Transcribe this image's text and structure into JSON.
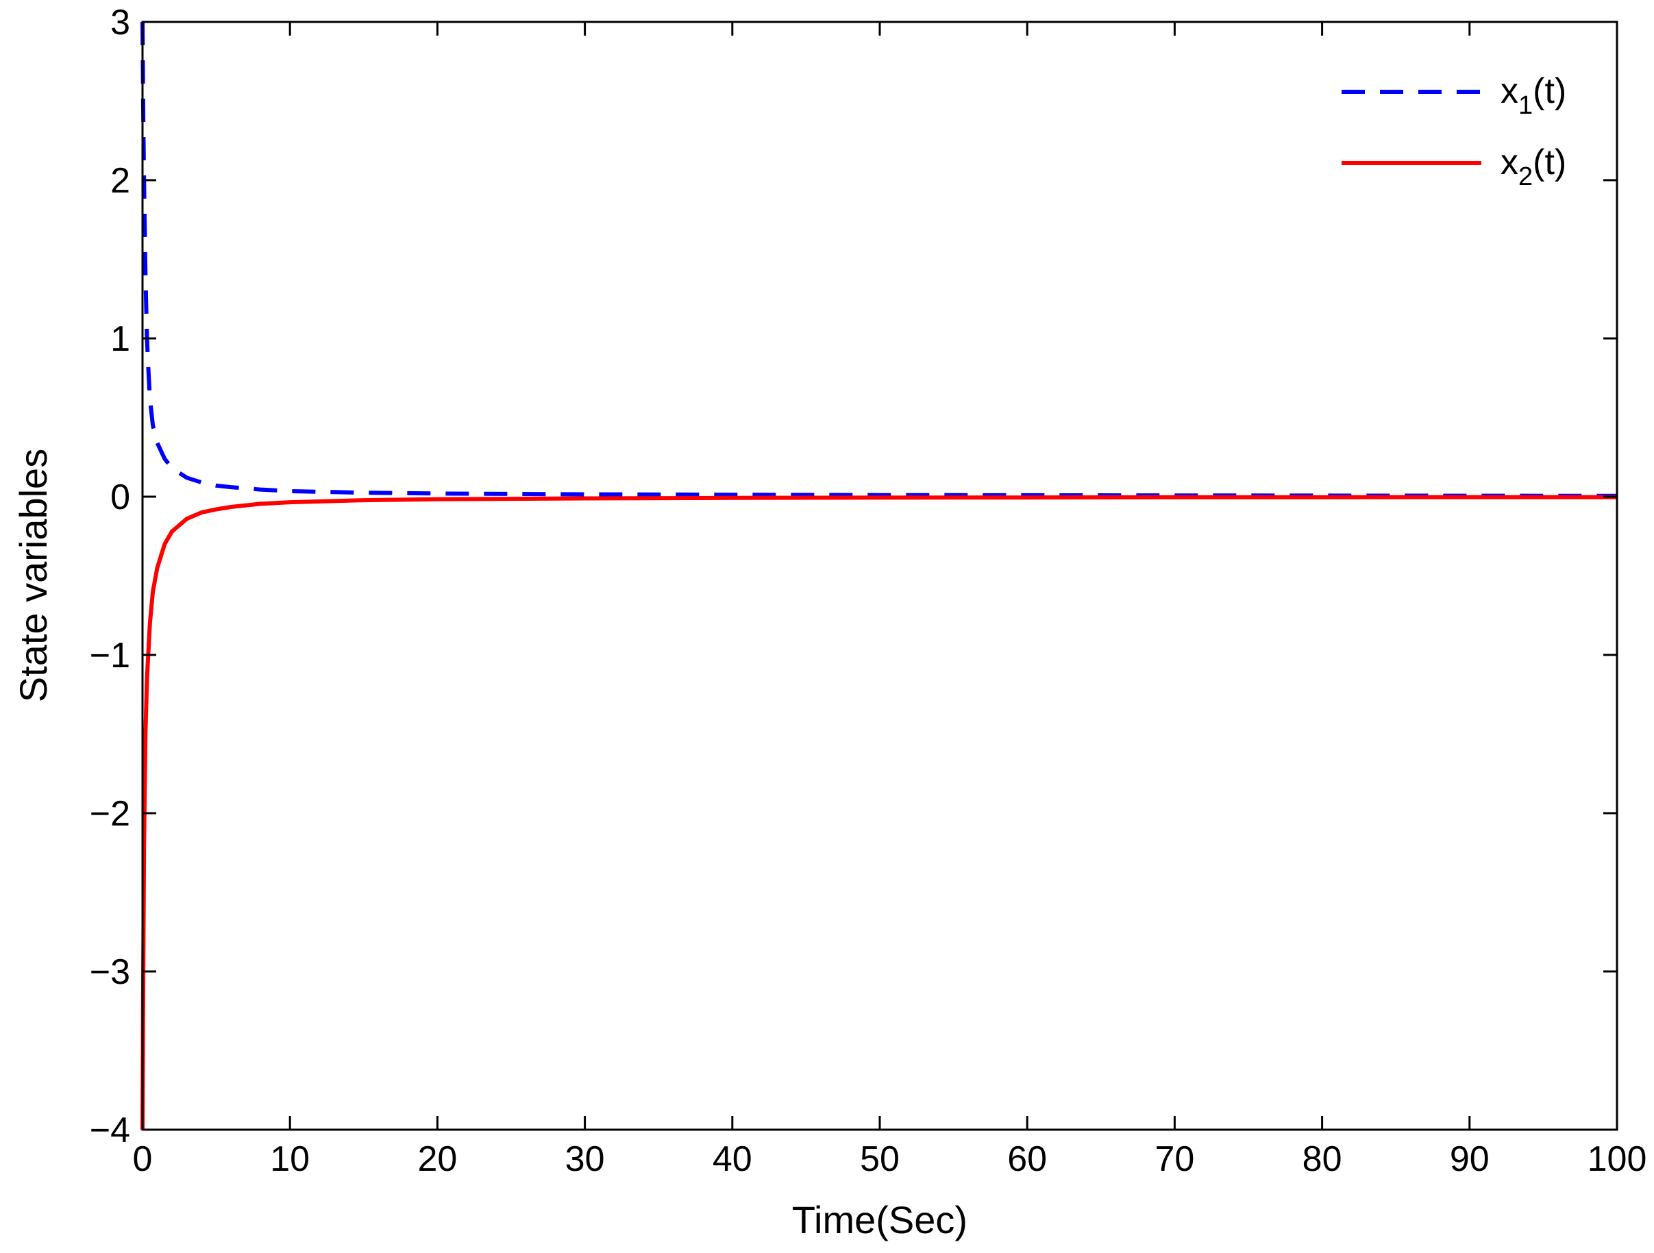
{
  "chart_data": {
    "type": "line",
    "title": "",
    "xlabel": "Time(Sec)",
    "ylabel": "State variables",
    "xlim": [
      0,
      100
    ],
    "ylim": [
      -4,
      3
    ],
    "xticks": [
      0,
      10,
      20,
      30,
      40,
      50,
      60,
      70,
      80,
      90,
      100
    ],
    "yticks": [
      -4,
      -3,
      -2,
      -1,
      0,
      1,
      2,
      3
    ],
    "xtick_labels": [
      "0",
      "10",
      "20",
      "30",
      "40",
      "50",
      "60",
      "70",
      "80",
      "90",
      "100"
    ],
    "ytick_labels": [
      "−4",
      "−3",
      "−2",
      "−1",
      "0",
      "1",
      "2",
      "3"
    ],
    "grid": false,
    "legend": {
      "placement": "top-right"
    },
    "series": [
      {
        "name": "x1(t)",
        "legend_base": "x",
        "legend_sub": "1",
        "legend_tail": "(t)",
        "color": "#0000ff",
        "style": "dashed",
        "x": [
          0,
          0.05,
          0.1,
          0.2,
          0.3,
          0.4,
          0.5,
          0.7,
          1,
          1.5,
          2,
          3,
          4,
          5,
          6,
          8,
          10,
          15,
          20,
          30,
          40,
          50,
          60,
          70,
          80,
          90,
          100
        ],
        "y": [
          3,
          2.4,
          2.0,
          1.4,
          1.0,
          0.8,
          0.62,
          0.45,
          0.34,
          0.24,
          0.18,
          0.12,
          0.09,
          0.07,
          0.06,
          0.045,
          0.035,
          0.025,
          0.02,
          0.015,
          0.012,
          0.01,
          0.009,
          0.008,
          0.007,
          0.006,
          0.005
        ]
      },
      {
        "name": "x2(t)",
        "legend_base": "x",
        "legend_sub": "2",
        "legend_tail": "(t)",
        "color": "#ff0000",
        "style": "solid",
        "x": [
          0,
          0.05,
          0.1,
          0.2,
          0.3,
          0.5,
          0.7,
          1,
          1.5,
          2,
          3,
          4,
          5,
          6,
          8,
          10,
          15,
          20,
          30,
          40,
          50,
          60,
          70,
          80,
          90,
          100
        ],
        "y": [
          -4,
          -3.0,
          -2.2,
          -1.5,
          -1.15,
          -0.8,
          -0.6,
          -0.45,
          -0.3,
          -0.22,
          -0.14,
          -0.1,
          -0.08,
          -0.065,
          -0.045,
          -0.035,
          -0.022,
          -0.016,
          -0.011,
          -0.008,
          -0.006,
          -0.005,
          -0.004,
          -0.004,
          -0.003,
          -0.003
        ]
      }
    ]
  }
}
